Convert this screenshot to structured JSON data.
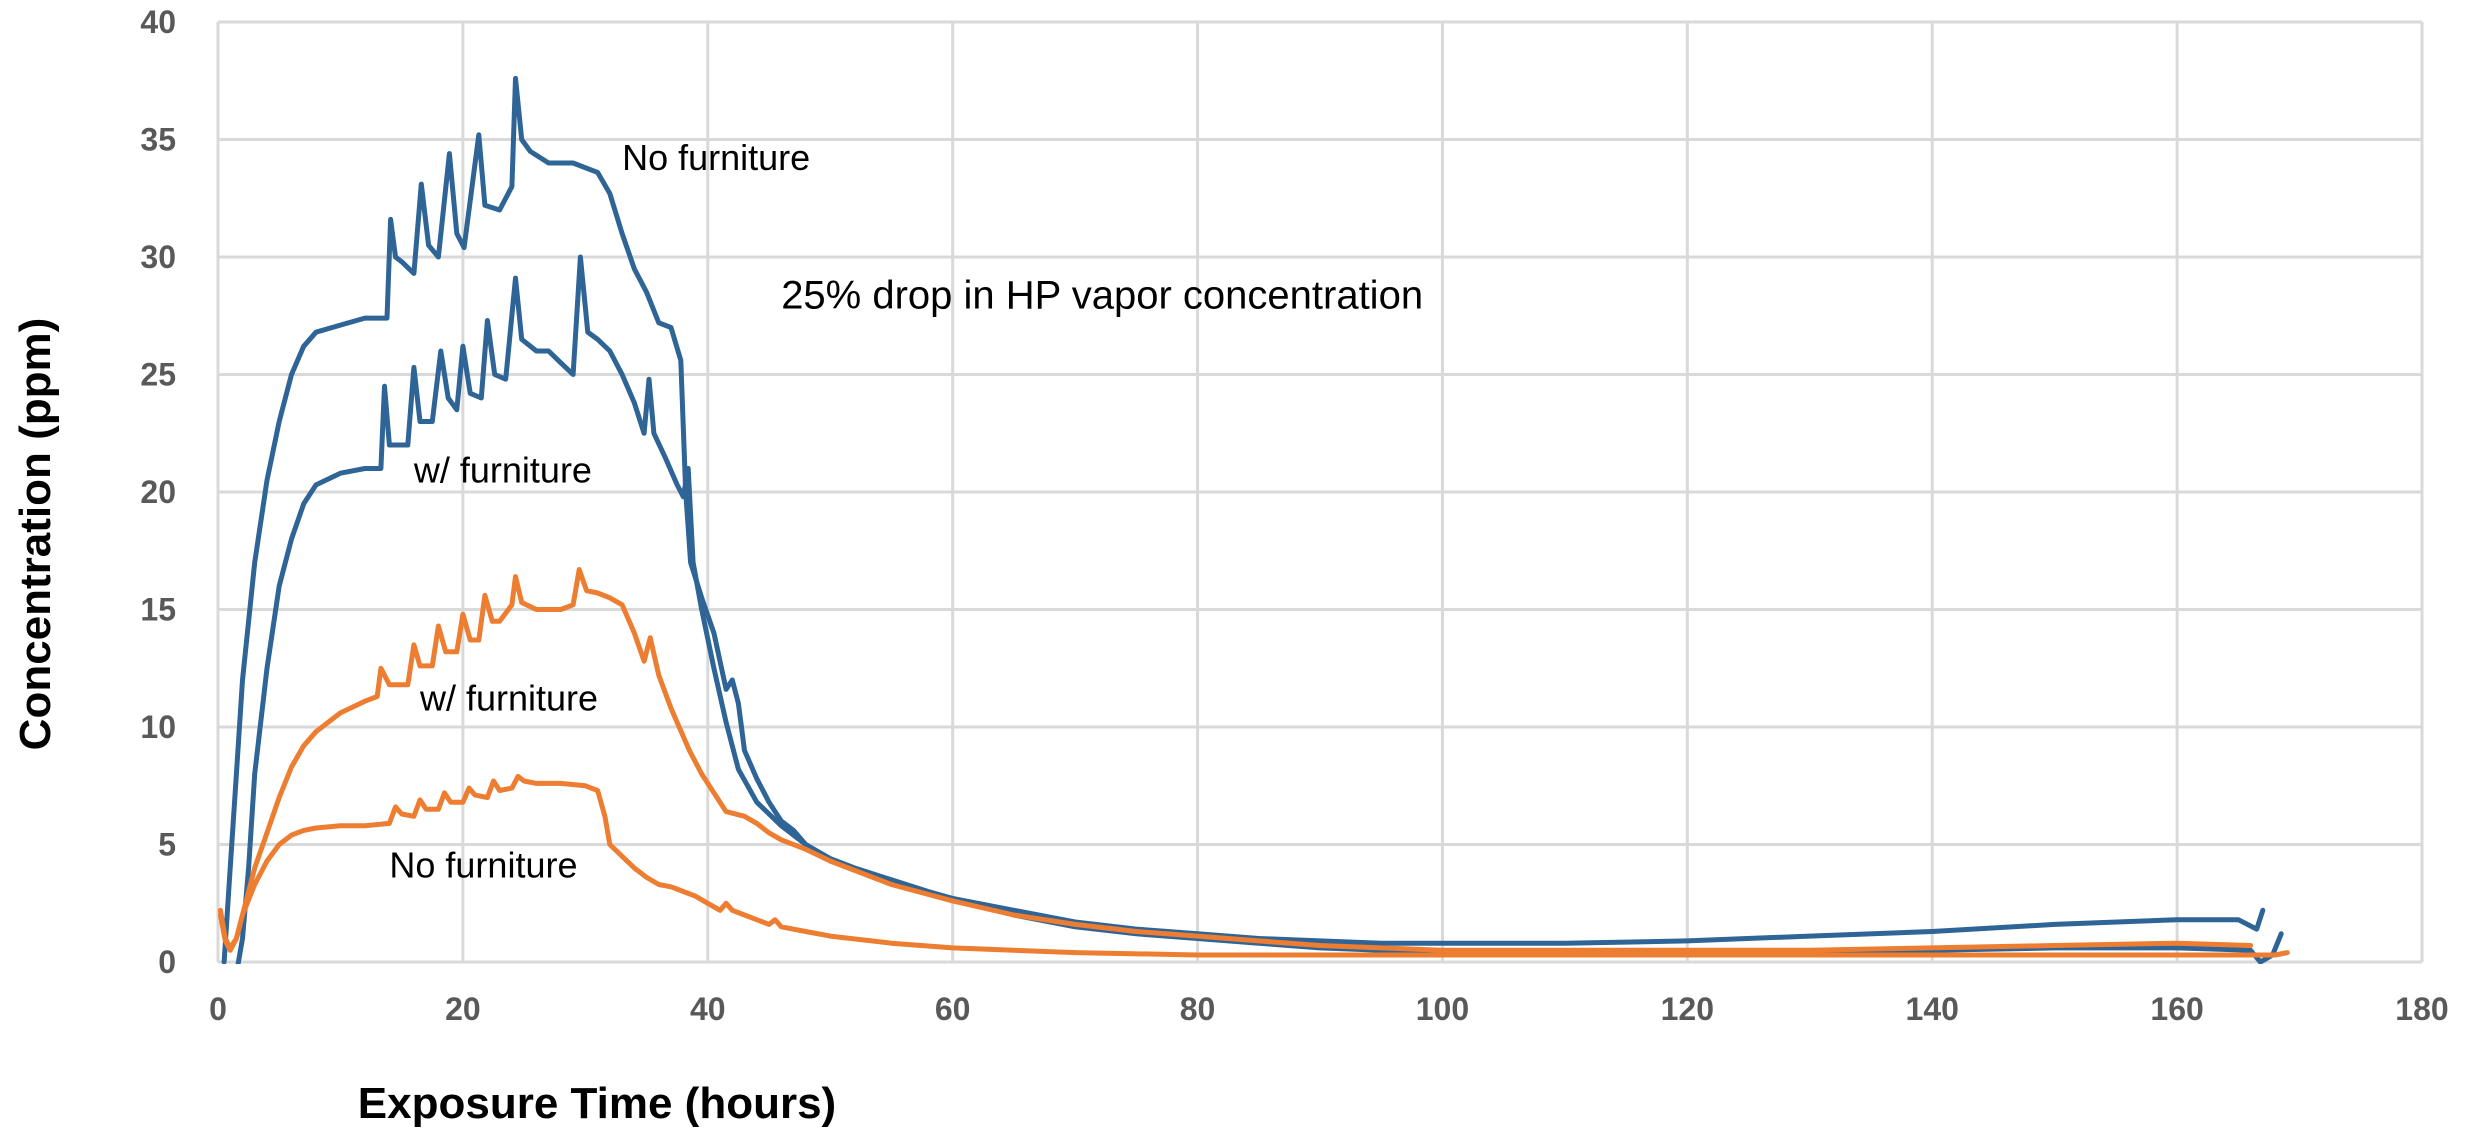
{
  "chart_data": {
    "type": "line",
    "title": "",
    "xlabel": "Exposure Time (hours)",
    "ylabel": "Concentration (ppm)",
    "xlim": [
      0,
      180
    ],
    "ylim": [
      0,
      40
    ],
    "x_ticks": [
      "0",
      "20",
      "40",
      "60",
      "80",
      "100",
      "120",
      "140",
      "160",
      "180"
    ],
    "y_ticks": [
      "0",
      "5",
      "10",
      "15",
      "20",
      "25",
      "30",
      "35",
      "40"
    ],
    "grid": true,
    "legend": "none",
    "annotations": [
      {
        "text": "No furniture",
        "x": 33,
        "y": 33.7
      },
      {
        "text": "25% drop in HP vapor concentration",
        "x": 46,
        "y": 27.8
      },
      {
        "text": "w/ furniture",
        "x": 16,
        "y": 20.4
      },
      {
        "text": "w/ furniture",
        "x": 16.5,
        "y": 10.7
      },
      {
        "text": "No furniture",
        "x": 14,
        "y": 3.6
      }
    ],
    "series": [
      {
        "color": "#2e6496",
        "points": [
          [
            0.5,
            0
          ],
          [
            1,
            4
          ],
          [
            1.5,
            8
          ],
          [
            2,
            12
          ],
          [
            3,
            17
          ],
          [
            4,
            20.5
          ],
          [
            5,
            23
          ],
          [
            6,
            25
          ],
          [
            7,
            26.2
          ],
          [
            8,
            26.8
          ],
          [
            10,
            27.1
          ],
          [
            12,
            27.4
          ],
          [
            13.8,
            27.4
          ],
          [
            14.1,
            31.6
          ],
          [
            14.5,
            30
          ],
          [
            15,
            29.8
          ],
          [
            16,
            29.3
          ],
          [
            16.6,
            33.1
          ],
          [
            17.2,
            30.5
          ],
          [
            18,
            30
          ],
          [
            18.9,
            34.4
          ],
          [
            19.5,
            31
          ],
          [
            20.1,
            30.4
          ],
          [
            21.3,
            35.2
          ],
          [
            21.8,
            32.2
          ],
          [
            23,
            32
          ],
          [
            24,
            33
          ],
          [
            24.3,
            37.6
          ],
          [
            24.8,
            35
          ],
          [
            25.5,
            34.5
          ],
          [
            27,
            34
          ],
          [
            29,
            34
          ],
          [
            31,
            33.6
          ],
          [
            32,
            32.7
          ],
          [
            33,
            31
          ],
          [
            34,
            29.5
          ],
          [
            35,
            28.5
          ],
          [
            36,
            27.2
          ],
          [
            37,
            27
          ],
          [
            37.8,
            25.6
          ],
          [
            38.2,
            20
          ],
          [
            38.6,
            17
          ],
          [
            39.5,
            15.5
          ],
          [
            40.5,
            14
          ],
          [
            41.5,
            11.6
          ],
          [
            42,
            12
          ],
          [
            42.5,
            11
          ],
          [
            43,
            9
          ],
          [
            44,
            7.8
          ],
          [
            45,
            6.8
          ],
          [
            46,
            6
          ],
          [
            47,
            5.6
          ],
          [
            48,
            5
          ],
          [
            50,
            4.4
          ],
          [
            52,
            4
          ],
          [
            55,
            3.5
          ],
          [
            58,
            3
          ],
          [
            60,
            2.7
          ],
          [
            65,
            2.2
          ],
          [
            70,
            1.7
          ],
          [
            75,
            1.4
          ],
          [
            80,
            1.2
          ],
          [
            85,
            1
          ],
          [
            90,
            0.9
          ],
          [
            95,
            0.8
          ],
          [
            100,
            0.8
          ],
          [
            110,
            0.8
          ],
          [
            120,
            0.9
          ],
          [
            130,
            1.1
          ],
          [
            140,
            1.3
          ],
          [
            150,
            1.6
          ],
          [
            160,
            1.8
          ],
          [
            165,
            1.8
          ],
          [
            166.5,
            1.4
          ],
          [
            167,
            2.2
          ]
        ]
      },
      {
        "color": "#2e6496",
        "points": [
          [
            1.5,
            -0.5
          ],
          [
            2,
            1
          ],
          [
            2.5,
            4
          ],
          [
            3,
            8
          ],
          [
            4,
            12.5
          ],
          [
            5,
            16
          ],
          [
            6,
            18
          ],
          [
            7,
            19.5
          ],
          [
            8,
            20.3
          ],
          [
            10,
            20.8
          ],
          [
            12,
            21
          ],
          [
            13.3,
            21
          ],
          [
            13.6,
            24.5
          ],
          [
            14,
            22
          ],
          [
            15.5,
            22
          ],
          [
            16,
            25.3
          ],
          [
            16.5,
            23
          ],
          [
            17.5,
            23
          ],
          [
            18.2,
            26
          ],
          [
            18.8,
            24
          ],
          [
            19.5,
            23.5
          ],
          [
            20,
            26.2
          ],
          [
            20.6,
            24.2
          ],
          [
            21.5,
            24
          ],
          [
            22,
            27.3
          ],
          [
            22.6,
            25
          ],
          [
            23.5,
            24.8
          ],
          [
            24.3,
            29.1
          ],
          [
            24.8,
            26.5
          ],
          [
            26,
            26
          ],
          [
            27,
            26
          ],
          [
            28,
            25.5
          ],
          [
            29,
            25
          ],
          [
            29.6,
            30
          ],
          [
            30.2,
            26.8
          ],
          [
            31,
            26.5
          ],
          [
            32,
            26
          ],
          [
            33,
            25
          ],
          [
            34,
            23.8
          ],
          [
            34.8,
            22.5
          ],
          [
            35.2,
            24.8
          ],
          [
            35.6,
            22.5
          ],
          [
            36.5,
            21.5
          ],
          [
            37.5,
            20.3
          ],
          [
            38,
            19.8
          ],
          [
            38.4,
            21
          ],
          [
            38.8,
            17
          ],
          [
            39.5,
            15
          ],
          [
            40.5,
            12.5
          ],
          [
            41.5,
            10.2
          ],
          [
            42.5,
            8.2
          ],
          [
            44,
            6.8
          ],
          [
            46,
            5.8
          ],
          [
            48,
            5
          ],
          [
            50,
            4.3
          ],
          [
            55,
            3.4
          ],
          [
            60,
            2.7
          ],
          [
            65,
            2
          ],
          [
            70,
            1.5
          ],
          [
            75,
            1.2
          ],
          [
            80,
            1
          ],
          [
            85,
            0.8
          ],
          [
            90,
            0.6
          ],
          [
            95,
            0.5
          ],
          [
            100,
            0.4
          ],
          [
            110,
            0.3
          ],
          [
            120,
            0.3
          ],
          [
            130,
            0.4
          ],
          [
            140,
            0.5
          ],
          [
            150,
            0.6
          ],
          [
            160,
            0.6
          ],
          [
            166,
            0.5
          ],
          [
            166.8,
            0
          ],
          [
            167.8,
            0.3
          ],
          [
            168.5,
            1.2
          ]
        ]
      },
      {
        "color": "#ed7d31",
        "points": [
          [
            0.2,
            2.2
          ],
          [
            0.6,
            1
          ],
          [
            1,
            0.6
          ],
          [
            1.5,
            1
          ],
          [
            2,
            2
          ],
          [
            3,
            4
          ],
          [
            4,
            5.5
          ],
          [
            5,
            7
          ],
          [
            6,
            8.3
          ],
          [
            7,
            9.2
          ],
          [
            8,
            9.8
          ],
          [
            10,
            10.6
          ],
          [
            12,
            11.1
          ],
          [
            13,
            11.3
          ],
          [
            13.3,
            12.5
          ],
          [
            14,
            11.8
          ],
          [
            15.5,
            11.8
          ],
          [
            16,
            13.5
          ],
          [
            16.5,
            12.6
          ],
          [
            17.5,
            12.6
          ],
          [
            18,
            14.3
          ],
          [
            18.6,
            13.2
          ],
          [
            19.5,
            13.2
          ],
          [
            20,
            14.8
          ],
          [
            20.6,
            13.7
          ],
          [
            21.3,
            13.7
          ],
          [
            21.8,
            15.6
          ],
          [
            22.4,
            14.5
          ],
          [
            23,
            14.5
          ],
          [
            24,
            15.2
          ],
          [
            24.3,
            16.4
          ],
          [
            24.8,
            15.3
          ],
          [
            26,
            15
          ],
          [
            28,
            15
          ],
          [
            29,
            15.2
          ],
          [
            29.5,
            16.7
          ],
          [
            30.1,
            15.8
          ],
          [
            31,
            15.7
          ],
          [
            32,
            15.5
          ],
          [
            33,
            15.2
          ],
          [
            34,
            14
          ],
          [
            34.8,
            12.8
          ],
          [
            35.3,
            13.8
          ],
          [
            36,
            12.2
          ],
          [
            37,
            10.8
          ],
          [
            38.5,
            9
          ],
          [
            39.5,
            8
          ],
          [
            40.5,
            7.2
          ],
          [
            41.5,
            6.4
          ],
          [
            43,
            6.2
          ],
          [
            44,
            5.9
          ],
          [
            45,
            5.5
          ],
          [
            46,
            5.2
          ],
          [
            48,
            4.8
          ],
          [
            50,
            4.3
          ],
          [
            55,
            3.3
          ],
          [
            60,
            2.6
          ],
          [
            65,
            2
          ],
          [
            70,
            1.6
          ],
          [
            75,
            1.3
          ],
          [
            80,
            1.1
          ],
          [
            85,
            0.9
          ],
          [
            90,
            0.7
          ],
          [
            95,
            0.6
          ],
          [
            100,
            0.5
          ],
          [
            110,
            0.5
          ],
          [
            120,
            0.5
          ],
          [
            130,
            0.5
          ],
          [
            140,
            0.6
          ],
          [
            150,
            0.7
          ],
          [
            160,
            0.8
          ],
          [
            166,
            0.7
          ]
        ]
      },
      {
        "color": "#ed7d31",
        "points": [
          [
            0.2,
            2
          ],
          [
            0.6,
            0.9
          ],
          [
            1,
            0.5
          ],
          [
            1.5,
            1
          ],
          [
            2,
            2
          ],
          [
            3,
            3.3
          ],
          [
            4,
            4.3
          ],
          [
            5,
            5
          ],
          [
            6,
            5.4
          ],
          [
            7,
            5.6
          ],
          [
            8,
            5.7
          ],
          [
            10,
            5.8
          ],
          [
            12,
            5.8
          ],
          [
            14,
            5.9
          ],
          [
            14.5,
            6.6
          ],
          [
            15,
            6.3
          ],
          [
            16,
            6.2
          ],
          [
            16.5,
            6.9
          ],
          [
            17,
            6.5
          ],
          [
            18,
            6.5
          ],
          [
            18.5,
            7.2
          ],
          [
            19,
            6.8
          ],
          [
            20,
            6.8
          ],
          [
            20.5,
            7.4
          ],
          [
            21,
            7.1
          ],
          [
            22,
            7
          ],
          [
            22.5,
            7.7
          ],
          [
            23,
            7.3
          ],
          [
            24,
            7.4
          ],
          [
            24.5,
            7.9
          ],
          [
            25,
            7.7
          ],
          [
            26,
            7.6
          ],
          [
            28,
            7.6
          ],
          [
            30,
            7.5
          ],
          [
            31,
            7.3
          ],
          [
            31.6,
            6.2
          ],
          [
            32,
            5
          ],
          [
            33,
            4.5
          ],
          [
            34,
            4
          ],
          [
            35,
            3.6
          ],
          [
            36,
            3.3
          ],
          [
            37,
            3.2
          ],
          [
            38,
            3
          ],
          [
            39,
            2.8
          ],
          [
            40,
            2.5
          ],
          [
            41,
            2.2
          ],
          [
            41.5,
            2.5
          ],
          [
            42,
            2.2
          ],
          [
            43,
            2
          ],
          [
            44,
            1.8
          ],
          [
            45,
            1.6
          ],
          [
            45.5,
            1.8
          ],
          [
            46,
            1.5
          ],
          [
            48,
            1.3
          ],
          [
            50,
            1.1
          ],
          [
            55,
            0.8
          ],
          [
            60,
            0.6
          ],
          [
            65,
            0.5
          ],
          [
            70,
            0.4
          ],
          [
            80,
            0.3
          ],
          [
            90,
            0.3
          ],
          [
            100,
            0.3
          ],
          [
            110,
            0.3
          ],
          [
            120,
            0.3
          ],
          [
            130,
            0.3
          ],
          [
            140,
            0.3
          ],
          [
            150,
            0.3
          ],
          [
            160,
            0.3
          ],
          [
            166,
            0.3
          ],
          [
            168,
            0.3
          ],
          [
            169,
            0.4
          ]
        ]
      }
    ]
  }
}
